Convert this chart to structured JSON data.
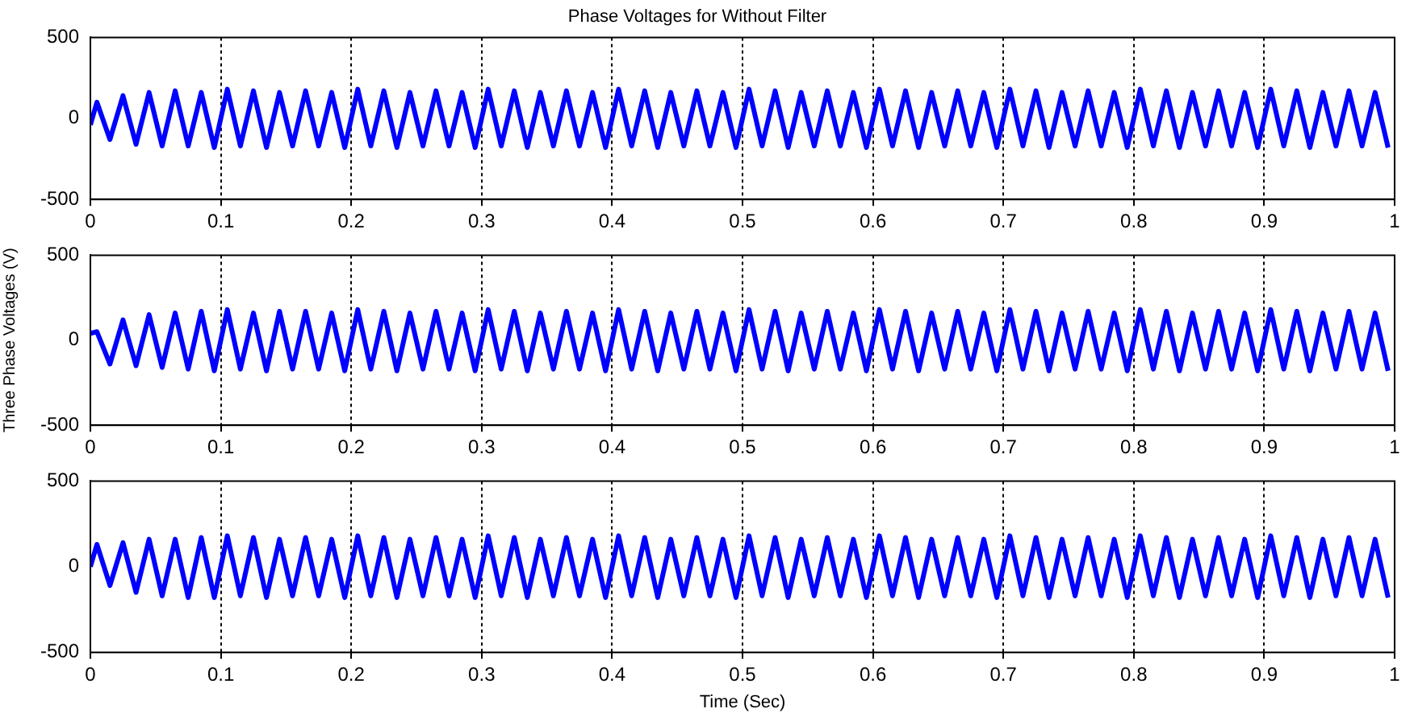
{
  "chart_data": [
    {
      "type": "line",
      "title": "Phase Voltages for Without Filter",
      "xlim": [
        0,
        1
      ],
      "xticks": [
        0,
        0.1,
        0.2,
        0.3,
        0.4,
        0.5,
        0.6,
        0.7,
        0.8,
        0.9,
        1
      ],
      "ylim": [
        -500,
        500
      ],
      "yticks": [
        -500,
        0,
        500
      ],
      "grid": "x",
      "marker": "none",
      "line_style": "solid",
      "series": [
        {
          "color": "#0000ff",
          "x": [
            0,
            0.005,
            0.015,
            0.025,
            0.035,
            0.045,
            0.055,
            0.065,
            0.075,
            0.085,
            0.095,
            0.105,
            0.115,
            0.125,
            0.135,
            0.145,
            0.155,
            0.165,
            0.175,
            0.185,
            0.195,
            0.205,
            0.215,
            0.225,
            0.235,
            0.245,
            0.255,
            0.265,
            0.275,
            0.285,
            0.295,
            0.305,
            0.315,
            0.325,
            0.335,
            0.345,
            0.355,
            0.365,
            0.375,
            0.385,
            0.395,
            0.405,
            0.415,
            0.425,
            0.435,
            0.445,
            0.455,
            0.465,
            0.475,
            0.485,
            0.495,
            0.505,
            0.515,
            0.525,
            0.535,
            0.545,
            0.555,
            0.565,
            0.575,
            0.585,
            0.595,
            0.605,
            0.615,
            0.625,
            0.635,
            0.645,
            0.655,
            0.665,
            0.675,
            0.685,
            0.695,
            0.705,
            0.715,
            0.725,
            0.735,
            0.745,
            0.755,
            0.765,
            0.775,
            0.785,
            0.795,
            0.805,
            0.815,
            0.825,
            0.835,
            0.845,
            0.855,
            0.865,
            0.875,
            0.885,
            0.895,
            0.905,
            0.915,
            0.925,
            0.935,
            0.945,
            0.955,
            0.965,
            0.975,
            0.985,
            0.995
          ],
          "values": [
            -40,
            100,
            -130,
            140,
            -160,
            160,
            -170,
            170,
            -170,
            160,
            -180,
            180,
            -170,
            170,
            -180,
            160,
            -170,
            170,
            -170,
            160,
            -180,
            180,
            -170,
            170,
            -180,
            160,
            -170,
            170,
            -170,
            160,
            -180,
            180,
            -170,
            170,
            -180,
            160,
            -170,
            170,
            -170,
            160,
            -180,
            180,
            -170,
            170,
            -180,
            160,
            -170,
            170,
            -170,
            160,
            -180,
            180,
            -170,
            170,
            -180,
            160,
            -170,
            170,
            -170,
            160,
            -180,
            180,
            -170,
            170,
            -180,
            160,
            -170,
            170,
            -170,
            160,
            -180,
            180,
            -170,
            170,
            -180,
            160,
            -170,
            170,
            -170,
            160,
            -180,
            180,
            -170,
            170,
            -180,
            160,
            -170,
            170,
            -170,
            160,
            -180,
            180,
            -170,
            170,
            -180,
            160,
            -170,
            170,
            -170,
            160,
            -180
          ]
        }
      ]
    },
    {
      "type": "line",
      "ylabel": "Three Phase Voltages (V)",
      "xlim": [
        0,
        1
      ],
      "xticks": [
        0,
        0.1,
        0.2,
        0.3,
        0.4,
        0.5,
        0.6,
        0.7,
        0.8,
        0.9,
        1
      ],
      "ylim": [
        -500,
        500
      ],
      "yticks": [
        -500,
        0,
        500
      ],
      "grid": "x",
      "marker": "none",
      "line_style": "solid",
      "series": [
        {
          "color": "#0000ff",
          "x": [
            0,
            0.005,
            0.015,
            0.025,
            0.035,
            0.045,
            0.055,
            0.065,
            0.075,
            0.085,
            0.095,
            0.105,
            0.115,
            0.125,
            0.135,
            0.145,
            0.155,
            0.165,
            0.175,
            0.185,
            0.195,
            0.205,
            0.215,
            0.225,
            0.235,
            0.245,
            0.255,
            0.265,
            0.275,
            0.285,
            0.295,
            0.305,
            0.315,
            0.325,
            0.335,
            0.345,
            0.355,
            0.365,
            0.375,
            0.385,
            0.395,
            0.405,
            0.415,
            0.425,
            0.435,
            0.445,
            0.455,
            0.465,
            0.475,
            0.485,
            0.495,
            0.505,
            0.515,
            0.525,
            0.535,
            0.545,
            0.555,
            0.565,
            0.575,
            0.585,
            0.595,
            0.605,
            0.615,
            0.625,
            0.635,
            0.645,
            0.655,
            0.665,
            0.675,
            0.685,
            0.695,
            0.705,
            0.715,
            0.725,
            0.735,
            0.745,
            0.755,
            0.765,
            0.775,
            0.785,
            0.795,
            0.805,
            0.815,
            0.825,
            0.835,
            0.845,
            0.855,
            0.865,
            0.875,
            0.885,
            0.895,
            0.905,
            0.915,
            0.925,
            0.935,
            0.945,
            0.955,
            0.965,
            0.975,
            0.985,
            0.995
          ],
          "values": [
            40,
            50,
            -140,
            120,
            -150,
            150,
            -160,
            160,
            -170,
            170,
            -180,
            180,
            -170,
            160,
            -180,
            170,
            -170,
            170,
            -170,
            160,
            -180,
            180,
            -170,
            170,
            -180,
            160,
            -170,
            170,
            -170,
            160,
            -180,
            180,
            -170,
            170,
            -180,
            160,
            -170,
            170,
            -170,
            160,
            -180,
            180,
            -170,
            170,
            -180,
            160,
            -170,
            170,
            -170,
            160,
            -180,
            180,
            -170,
            170,
            -180,
            160,
            -170,
            170,
            -170,
            160,
            -180,
            180,
            -170,
            170,
            -180,
            160,
            -170,
            170,
            -170,
            160,
            -180,
            180,
            -170,
            170,
            -180,
            160,
            -170,
            170,
            -170,
            160,
            -180,
            180,
            -170,
            170,
            -180,
            160,
            -170,
            170,
            -170,
            160,
            -180,
            180,
            -170,
            170,
            -180,
            160,
            -170,
            170,
            -170,
            160,
            -180
          ]
        }
      ]
    },
    {
      "type": "line",
      "xlabel": "Time (Sec)",
      "xlim": [
        0,
        1
      ],
      "xticks": [
        0,
        0.1,
        0.2,
        0.3,
        0.4,
        0.5,
        0.6,
        0.7,
        0.8,
        0.9,
        1
      ],
      "ylim": [
        -500,
        500
      ],
      "yticks": [
        -500,
        0,
        500
      ],
      "grid": "x",
      "marker": "none",
      "line_style": "solid",
      "series": [
        {
          "color": "#0000ff",
          "x": [
            0,
            0.005,
            0.015,
            0.025,
            0.035,
            0.045,
            0.055,
            0.065,
            0.075,
            0.085,
            0.095,
            0.105,
            0.115,
            0.125,
            0.135,
            0.145,
            0.155,
            0.165,
            0.175,
            0.185,
            0.195,
            0.205,
            0.215,
            0.225,
            0.235,
            0.245,
            0.255,
            0.265,
            0.275,
            0.285,
            0.295,
            0.305,
            0.315,
            0.325,
            0.335,
            0.345,
            0.355,
            0.365,
            0.375,
            0.385,
            0.395,
            0.405,
            0.415,
            0.425,
            0.435,
            0.445,
            0.455,
            0.465,
            0.475,
            0.485,
            0.495,
            0.505,
            0.515,
            0.525,
            0.535,
            0.545,
            0.555,
            0.565,
            0.575,
            0.585,
            0.595,
            0.605,
            0.615,
            0.625,
            0.635,
            0.645,
            0.655,
            0.665,
            0.675,
            0.685,
            0.695,
            0.705,
            0.715,
            0.725,
            0.735,
            0.745,
            0.755,
            0.765,
            0.775,
            0.785,
            0.795,
            0.805,
            0.815,
            0.825,
            0.835,
            0.845,
            0.855,
            0.865,
            0.875,
            0.885,
            0.895,
            0.905,
            0.915,
            0.925,
            0.935,
            0.945,
            0.955,
            0.965,
            0.975,
            0.985,
            0.995
          ],
          "values": [
            0,
            130,
            -110,
            140,
            -150,
            160,
            -170,
            160,
            -180,
            170,
            -180,
            180,
            -170,
            170,
            -180,
            160,
            -170,
            170,
            -170,
            160,
            -180,
            180,
            -170,
            170,
            -180,
            160,
            -170,
            170,
            -170,
            160,
            -180,
            180,
            -170,
            170,
            -180,
            160,
            -170,
            170,
            -170,
            160,
            -180,
            180,
            -170,
            170,
            -180,
            160,
            -170,
            170,
            -170,
            160,
            -180,
            180,
            -170,
            170,
            -180,
            160,
            -170,
            170,
            -170,
            160,
            -180,
            180,
            -170,
            170,
            -180,
            160,
            -170,
            170,
            -170,
            160,
            -180,
            180,
            -170,
            170,
            -180,
            160,
            -170,
            170,
            -170,
            160,
            -180,
            180,
            -170,
            170,
            -180,
            160,
            -170,
            170,
            -170,
            160,
            -180,
            180,
            -170,
            170,
            -180,
            160,
            -170,
            170,
            -170,
            160,
            -180
          ]
        }
      ]
    }
  ]
}
